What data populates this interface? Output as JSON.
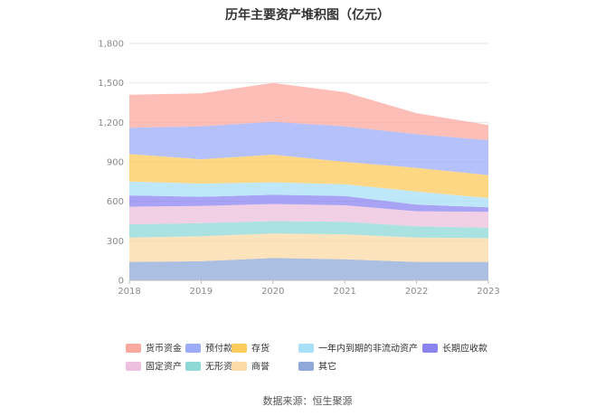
{
  "chart_data": {
    "type": "area",
    "stacked": true,
    "title": "历年主要资产堆积图（亿元）",
    "x": [
      "2018",
      "2019",
      "2020",
      "2021",
      "2022",
      "2023"
    ],
    "ylim": [
      0,
      1800
    ],
    "yticks": [
      0,
      300,
      600,
      900,
      1200,
      1500,
      1800
    ],
    "ytick_labels": [
      "0",
      "300",
      "600",
      "900",
      "1,200",
      "1,500",
      "1,800"
    ],
    "grid": true,
    "legend_position": "bottom",
    "series": [
      {
        "name": "其它",
        "color": "#8fa9d8",
        "values": [
          140,
          145,
          170,
          160,
          140,
          140
        ]
      },
      {
        "name": "商誉",
        "color": "#fcdaa6",
        "values": [
          185,
          190,
          185,
          190,
          185,
          180
        ]
      },
      {
        "name": "无形资产",
        "color": "#8ed8d8",
        "values": [
          100,
          100,
          95,
          95,
          85,
          80
        ]
      },
      {
        "name": "固定资产",
        "color": "#ecc0de",
        "values": [
          135,
          130,
          130,
          125,
          115,
          120
        ]
      },
      {
        "name": "长期应收款",
        "color": "#8b84f0",
        "values": [
          85,
          70,
          70,
          70,
          50,
          35
        ]
      },
      {
        "name": "一年内到期的非流动资产",
        "color": "#a8e0f8",
        "values": [
          105,
          100,
          95,
          90,
          100,
          70
        ]
      },
      {
        "name": "存货",
        "color": "#fdca5c",
        "values": [
          210,
          185,
          210,
          170,
          180,
          175
        ]
      },
      {
        "name": "预付款项",
        "color": "#9cacf8",
        "values": [
          200,
          250,
          250,
          270,
          255,
          265
        ]
      },
      {
        "name": "货币资金",
        "color": "#fba89f",
        "values": [
          250,
          250,
          295,
          260,
          160,
          115
        ]
      }
    ],
    "legend_order": [
      "货币资金",
      "预付款项",
      "存货",
      "一年内到期的非流动资产",
      "长期应收款",
      "固定资产",
      "无形资产",
      "商誉",
      "其它"
    ]
  },
  "footer": {
    "source": "数据来源：恒生聚源"
  }
}
